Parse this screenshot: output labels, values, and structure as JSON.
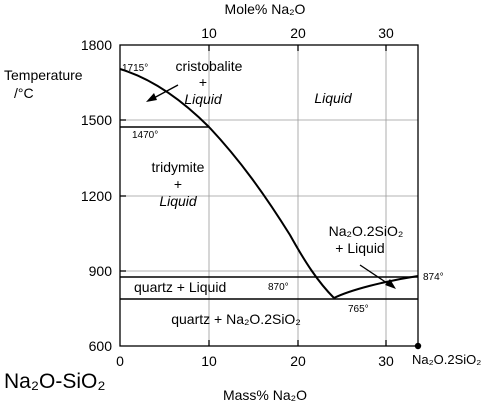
{
  "figure": {
    "system_label": "Na₂O-SiO₂",
    "top_axis": {
      "label": "Mole% Na₂O",
      "ticks": [
        {
          "value": 10,
          "label": "10"
        },
        {
          "value": 20,
          "label": "20"
        },
        {
          "value": 30,
          "label": "30"
        }
      ]
    },
    "bottom_axis": {
      "label": "Mass% Na₂O",
      "ticks": [
        {
          "value": 0,
          "label": "0"
        },
        {
          "value": 10,
          "label": "10"
        },
        {
          "value": 20,
          "label": "20"
        },
        {
          "value": 30,
          "label": "30"
        }
      ]
    },
    "left_axis": {
      "label_line1": "Temperature",
      "label_line2": "/°C",
      "ticks": [
        {
          "value": 600,
          "label": "600"
        },
        {
          "value": 900,
          "label": "900"
        },
        {
          "value": 1200,
          "label": "1200"
        },
        {
          "value": 1500,
          "label": "1500"
        },
        {
          "value": 1800,
          "label": "1800"
        }
      ]
    },
    "compound_label": "Na₂O.2SiO₂"
  },
  "phase_fields": {
    "cristobalite_liquid": {
      "line1": "cristobalite",
      "line2": "+",
      "line3": "Liquid"
    },
    "liquid": "Liquid",
    "tridymite_liquid": {
      "line1": "tridymite",
      "line2": "+",
      "line3": "Liquid"
    },
    "disilicate_liquid": {
      "line1": "Na₂O.2SiO₂",
      "line2": "+ Liquid"
    },
    "quartz_liquid": "quartz + Liquid",
    "quartz_disilicate": "quartz + Na₂O.2SiO₂"
  },
  "temperature_annotations": {
    "t1715": "1715°",
    "t1470": "1470°",
    "t870": "870°",
    "t874": "874°",
    "t765": "765°"
  },
  "curves": {
    "silica_liquidus": [
      [
        0,
        1715
      ],
      [
        4,
        1640
      ],
      [
        8,
        1540
      ],
      [
        10,
        1470
      ],
      [
        13,
        1380
      ],
      [
        16,
        1250
      ],
      [
        19,
        1110
      ],
      [
        22,
        940
      ],
      [
        24,
        800
      ],
      [
        24.5,
        770
      ]
    ],
    "disilicate_liquidus": [
      [
        24.5,
        770
      ],
      [
        27,
        820
      ],
      [
        30,
        850
      ],
      [
        33,
        874
      ]
    ],
    "isotherms": [
      {
        "temperature": 1470,
        "from": 0,
        "to": 10
      },
      {
        "temperature": 870,
        "from": 0,
        "to": 33
      },
      {
        "temperature": 765,
        "from": 0,
        "to": 33
      }
    ],
    "compound_composition": 33
  },
  "colors": {
    "line": "#000000",
    "grid": "#9a9a9a",
    "background": "#ffffff"
  }
}
